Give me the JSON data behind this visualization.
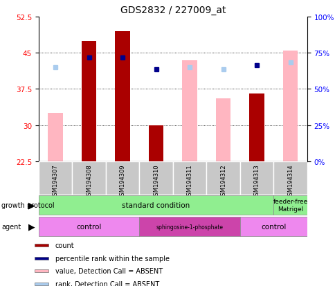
{
  "title": "GDS2832 / 227009_at",
  "samples": [
    "GSM194307",
    "GSM194308",
    "GSM194309",
    "GSM194310",
    "GSM194311",
    "GSM194312",
    "GSM194313",
    "GSM194314"
  ],
  "count_values": [
    null,
    47.5,
    49.5,
    30.0,
    null,
    null,
    36.5,
    null
  ],
  "count_absent_values": [
    32.5,
    null,
    null,
    null,
    43.5,
    35.5,
    null,
    45.5
  ],
  "rank_values": [
    null,
    44.0,
    44.0,
    41.5,
    null,
    null,
    42.5,
    null
  ],
  "rank_absent_values": [
    42.0,
    null,
    null,
    null,
    42.0,
    41.5,
    null,
    43.0
  ],
  "ylim_min": 22.5,
  "ylim_max": 52.5,
  "yticks": [
    22.5,
    30.0,
    37.5,
    45.0,
    52.5
  ],
  "ytick_labels": [
    "22.5",
    "30",
    "37.5",
    "45",
    "52.5"
  ],
  "y2lim_min": 0,
  "y2lim_max": 100,
  "y2ticks": [
    0,
    25,
    50,
    75,
    100
  ],
  "y2labels": [
    "0%",
    "25%",
    "50%",
    "75%",
    "100%"
  ],
  "count_color": "#AA0000",
  "count_absent_color": "#FFB6C1",
  "rank_color": "#00008B",
  "rank_absent_color": "#AACCEE",
  "title_fontsize": 10,
  "tick_fontsize": 7.5,
  "bg_color": "#FFFFFF",
  "plot_bg": "#FFFFFF",
  "sample_bg": "#C8C8C8",
  "grid_color": "#000000",
  "legend_items": [
    {
      "label": "count",
      "color": "#AA0000"
    },
    {
      "label": "percentile rank within the sample",
      "color": "#00008B"
    },
    {
      "label": "value, Detection Call = ABSENT",
      "color": "#FFB6C1"
    },
    {
      "label": "rank, Detection Call = ABSENT",
      "color": "#AACCEE"
    }
  ],
  "growth_groups": [
    {
      "label": "standard condition",
      "start": 0,
      "end": 6,
      "color": "#90EE90"
    },
    {
      "label": "feeder-free\nMatrigel",
      "start": 7,
      "end": 7,
      "color": "#90EE90"
    }
  ],
  "agent_groups": [
    {
      "label": "control",
      "start": 0,
      "end": 2,
      "color": "#EE88EE"
    },
    {
      "label": "sphingosine-1-phosphate",
      "start": 3,
      "end": 5,
      "color": "#CC44AA"
    },
    {
      "label": "control",
      "start": 6,
      "end": 7,
      "color": "#EE88EE"
    }
  ]
}
